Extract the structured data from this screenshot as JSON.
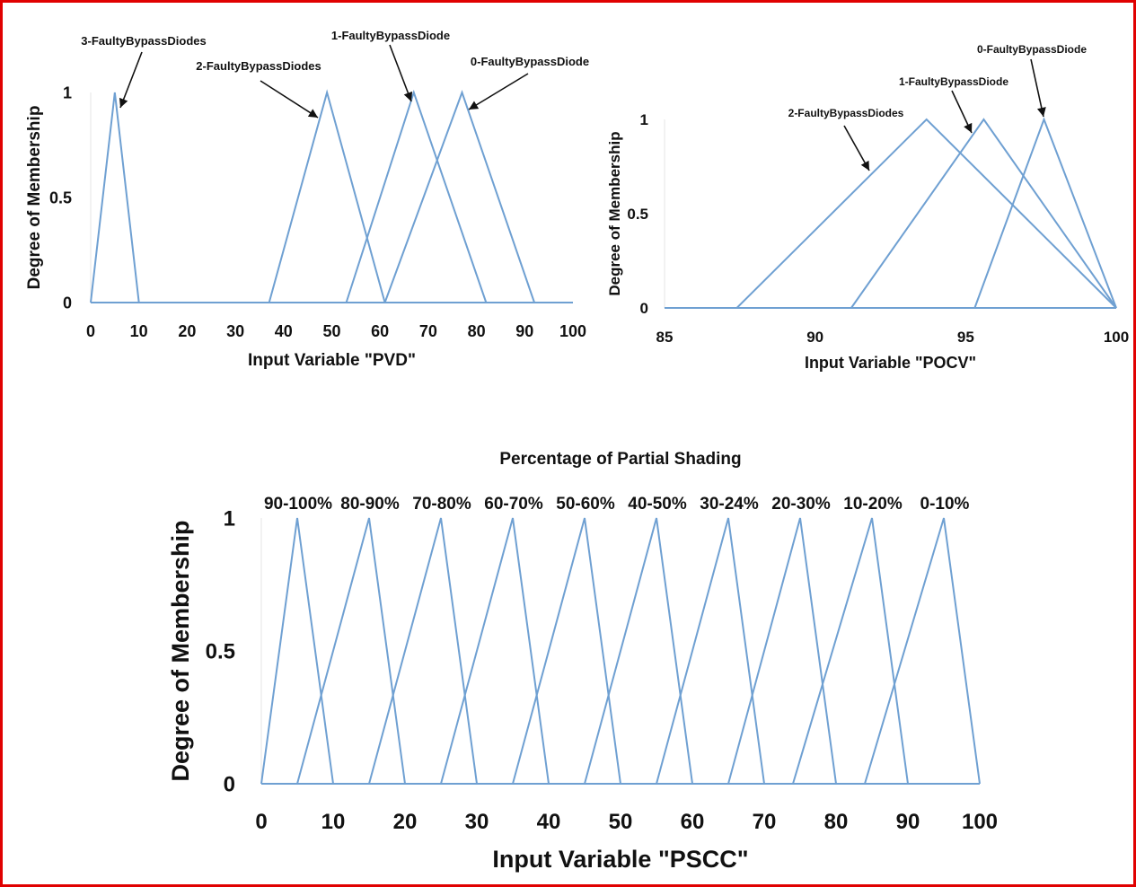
{
  "chart_data": [
    {
      "type": "line",
      "xlabel": "Input Variable \"PVD\"",
      "ylabel": "Degree of Membership",
      "xlim": [
        0,
        100
      ],
      "ylim": [
        0,
        1
      ],
      "xticks": [
        "0",
        "10",
        "20",
        "30",
        "40",
        "50",
        "60",
        "70",
        "80",
        "90",
        "100"
      ],
      "yticks": [
        "0",
        "0.5",
        "1"
      ],
      "grid": false,
      "series": [
        {
          "name": "3-FaultyBypassDiodes",
          "points": [
            [
              0,
              0
            ],
            [
              5,
              1
            ],
            [
              10,
              0
            ],
            [
              100,
              0
            ]
          ]
        },
        {
          "name": "2-FaultyBypassDiodes",
          "points": [
            [
              37,
              0
            ],
            [
              49,
              1
            ],
            [
              61,
              0
            ]
          ]
        },
        {
          "name": "1-FaultyBypassDiode",
          "points": [
            [
              53,
              0
            ],
            [
              67,
              1
            ],
            [
              82,
              0
            ]
          ]
        },
        {
          "name": "0-FaultyBypassDiode",
          "points": [
            [
              61,
              0
            ],
            [
              77,
              1
            ],
            [
              92,
              0
            ]
          ]
        }
      ]
    },
    {
      "type": "line",
      "xlabel": "Input Variable \"POCV\"",
      "ylabel": "Degree of Membership",
      "xlim": [
        85,
        100
      ],
      "ylim": [
        0,
        1
      ],
      "xticks": [
        "85",
        "90",
        "95",
        "100"
      ],
      "yticks": [
        "0",
        "0.5",
        "1"
      ],
      "grid": false,
      "series": [
        {
          "name": "2-FaultyBypassDiodes",
          "points": [
            [
              85,
              0
            ],
            [
              87.4,
              0
            ],
            [
              93.7,
              1
            ],
            [
              100,
              0
            ]
          ]
        },
        {
          "name": "1-FaultyBypassDiode",
          "points": [
            [
              91.2,
              0
            ],
            [
              95.6,
              1
            ],
            [
              100,
              0
            ]
          ]
        },
        {
          "name": "0-FaultyBypassDiode",
          "points": [
            [
              95.3,
              0
            ],
            [
              97.6,
              1
            ],
            [
              100,
              0
            ]
          ]
        }
      ]
    },
    {
      "type": "line",
      "title": "Percentage of Partial Shading",
      "xlabel": "Input Variable \"PSCC\"",
      "ylabel": "Degree of Membership",
      "xlim": [
        0,
        100
      ],
      "ylim": [
        0,
        1
      ],
      "xticks": [
        "0",
        "10",
        "20",
        "30",
        "40",
        "50",
        "60",
        "70",
        "80",
        "90",
        "100"
      ],
      "yticks": [
        "0",
        "0.5",
        "1"
      ],
      "grid": false,
      "series": [
        {
          "name": "90-100%",
          "points": [
            [
              0,
              0
            ],
            [
              5,
              1
            ],
            [
              10,
              0
            ]
          ]
        },
        {
          "name": "80-90%",
          "points": [
            [
              5,
              0
            ],
            [
              15,
              1
            ],
            [
              20,
              0
            ]
          ]
        },
        {
          "name": "70-80%",
          "points": [
            [
              15,
              0
            ],
            [
              25,
              1
            ],
            [
              30,
              0
            ]
          ]
        },
        {
          "name": "60-70%",
          "points": [
            [
              25,
              0
            ],
            [
              35,
              1
            ],
            [
              40,
              0
            ]
          ]
        },
        {
          "name": "50-60%",
          "points": [
            [
              35,
              0
            ],
            [
              45,
              1
            ],
            [
              50,
              0
            ]
          ]
        },
        {
          "name": "40-50%",
          "points": [
            [
              45,
              0
            ],
            [
              55,
              1
            ],
            [
              60,
              0
            ]
          ]
        },
        {
          "name": "30-24%",
          "points": [
            [
              55,
              0
            ],
            [
              65,
              1
            ],
            [
              70,
              0
            ]
          ]
        },
        {
          "name": "20-30%",
          "points": [
            [
              65,
              0
            ],
            [
              75,
              1
            ],
            [
              80,
              0
            ]
          ]
        },
        {
          "name": "10-20%",
          "points": [
            [
              74,
              0
            ],
            [
              85,
              1
            ],
            [
              90,
              0
            ]
          ]
        },
        {
          "name": "0-10%",
          "points": [
            [
              84,
              0
            ],
            [
              95,
              1
            ],
            [
              100,
              0
            ]
          ]
        }
      ]
    }
  ]
}
